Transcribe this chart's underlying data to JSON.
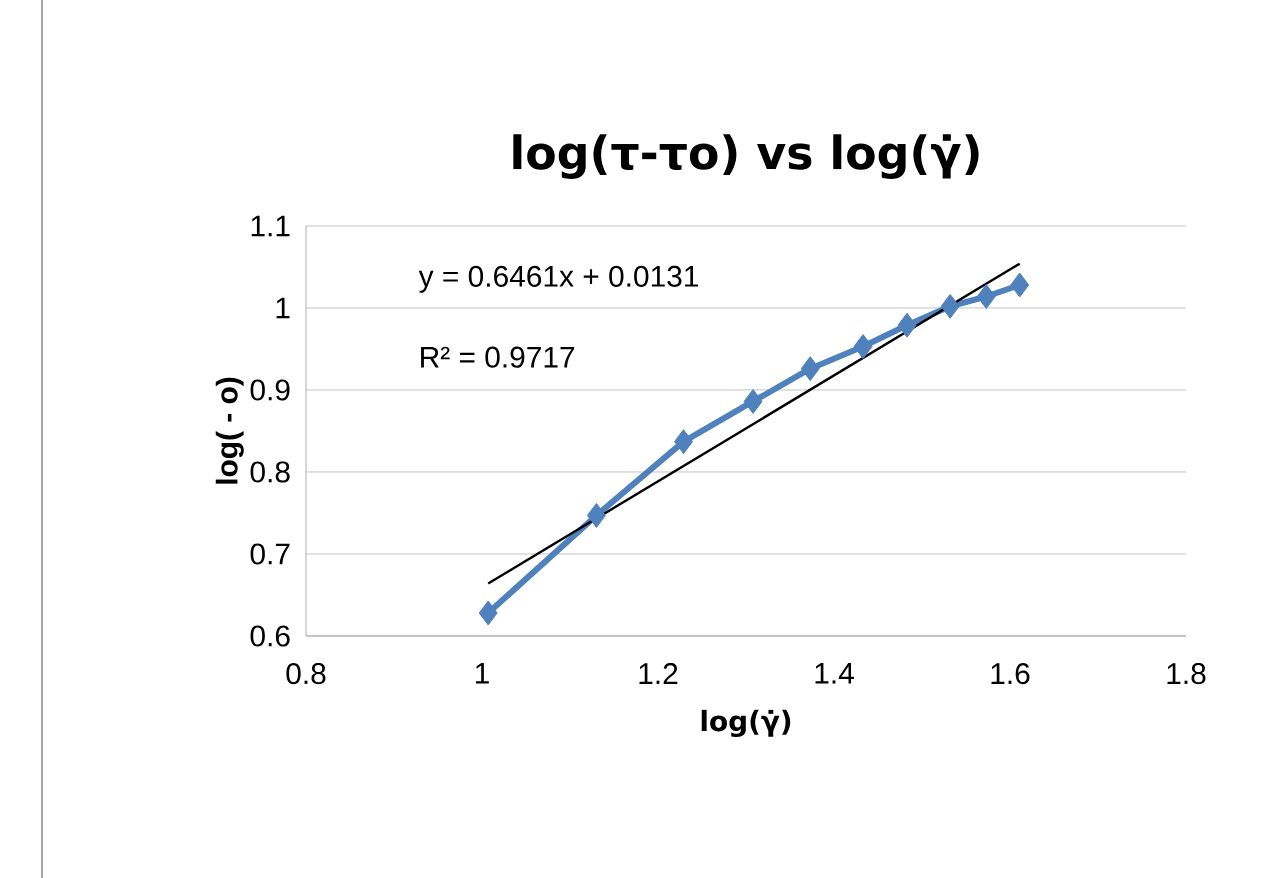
{
  "chart_data": {
    "type": "line",
    "title": "log(τ-τo) vs log(γ̇)",
    "xlabel": "log(γ̇)",
    "ylabel": "log(  - o)",
    "xlim": [
      0.8,
      1.8
    ],
    "xticks": [
      0.8,
      1,
      1.2,
      1.4,
      1.6,
      1.8
    ],
    "ylim": [
      0.6,
      1.1
    ],
    "yticks": [
      0.6,
      0.7,
      0.8,
      0.9,
      1,
      1.1
    ],
    "grid": "y",
    "annotations": [
      "y = 0.6461x + 0.0131",
      "R² = 0.9717"
    ],
    "series": [
      {
        "color": "#4f81bd",
        "marker": "diamond",
        "line_style": "solid",
        "x": [
          1.007,
          1.13,
          1.229,
          1.308,
          1.373,
          1.433,
          1.483,
          1.532,
          1.573,
          1.611
        ],
        "values": [
          0.628,
          0.747,
          0.837,
          0.886,
          0.926,
          0.953,
          0.979,
          1.002,
          1.014,
          1.028
        ]
      },
      {
        "type": "line",
        "color": "#000000",
        "marker": "none",
        "line_style": "solid",
        "x": [
          1.007,
          1.611
        ],
        "values": [
          0.664,
          1.054
        ]
      }
    ]
  }
}
